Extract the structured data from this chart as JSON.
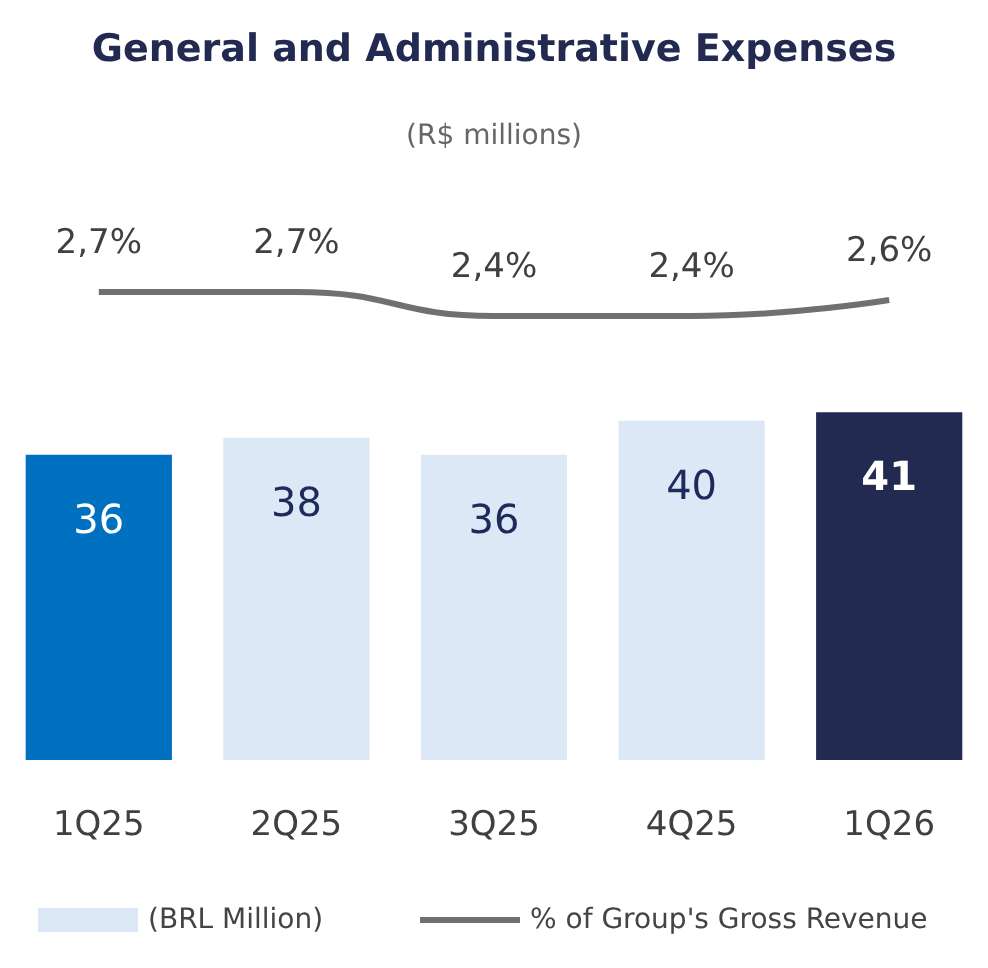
{
  "chart_data": [
    {
      "type": "line",
      "title": "General and Administrative Expenses",
      "subtitle": "(R$ millions)",
      "categories": [
        null,
        null,
        null,
        null,
        null
      ],
      "series": [
        {
          "name": "% of Group's Gross Revenue",
          "color": "#707070",
          "values": [
            2.7,
            2.7,
            2.4,
            2.4,
            2.6
          ],
          "value_labels": [
            "2,7%",
            "2,7%",
            "2,4%",
            "2,4%",
            "2,6%"
          ]
        }
      ],
      "tick_labels": false,
      "grid": false,
      "legend": "bottom",
      "marker": "none"
    },
    {
      "type": "bar",
      "categories": [
        "1Q25",
        "2Q25",
        "3Q25",
        "4Q25",
        "1Q26"
      ],
      "series": [
        {
          "name": "(BRL Million)",
          "color": "#dce8f5",
          "colors": [
            "#0070c0",
            "#dce8f5",
            "#dce8f5",
            "#dce8f5",
            "#232a52"
          ],
          "values": [
            36,
            38,
            36,
            40,
            41
          ]
        }
      ],
      "data_labels": true,
      "tick_labels": "x",
      "grid": false,
      "legend": "bottom"
    }
  ]
}
